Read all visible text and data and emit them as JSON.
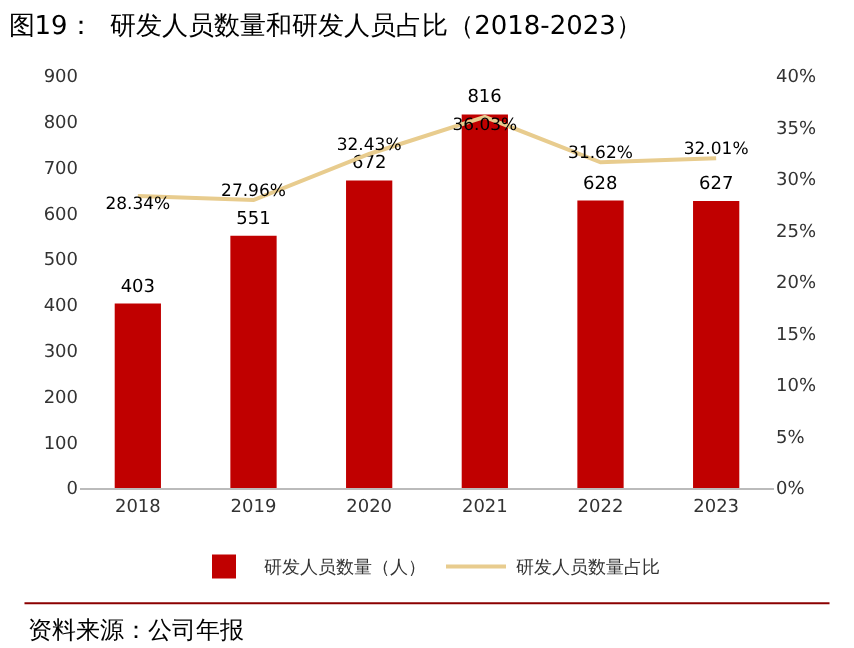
{
  "chart_data": {
    "type": "bar",
    "title": "图19：  研发人员数量和研发人员占比（2018-2023）",
    "categories": [
      "2018",
      "2019",
      "2020",
      "2021",
      "2022",
      "2023"
    ],
    "series": [
      {
        "name": "研发人员数量（人）",
        "color": "#c00000",
        "values": [
          403,
          551,
          672,
          816,
          628,
          627
        ]
      },
      {
        "name": "研发人员数量占比",
        "type": "line",
        "axis": "y2",
        "color": "#e8cc8e",
        "values": [
          28.34,
          27.96,
          32.43,
          36.03,
          31.62,
          32.01
        ],
        "value_labels": [
          "28.34%",
          "27.96%",
          "32.43%",
          "36.03%",
          "31.62%",
          "32.01%"
        ]
      }
    ],
    "ylim": [
      0,
      900
    ],
    "yticks": [
      0,
      100,
      200,
      300,
      400,
      500,
      600,
      700,
      800,
      900
    ],
    "y2lim": [
      0,
      40
    ],
    "y2ticks": [
      {
        "value": 0,
        "label": "0%"
      },
      {
        "value": 5,
        "label": "5%"
      },
      {
        "value": 10,
        "label": "10%"
      },
      {
        "value": 15,
        "label": "15%"
      },
      {
        "value": 20,
        "label": "20%"
      },
      {
        "value": 25,
        "label": "25%"
      },
      {
        "value": 30,
        "label": "30%"
      },
      {
        "value": 35,
        "label": "35%"
      },
      {
        "value": 40,
        "label": "40%"
      }
    ],
    "data_labels": true,
    "legend": "bottom",
    "grid": false,
    "marker": "none",
    "line_style": "solid",
    "annotations": [
      "资料来源：公司年报"
    ]
  }
}
